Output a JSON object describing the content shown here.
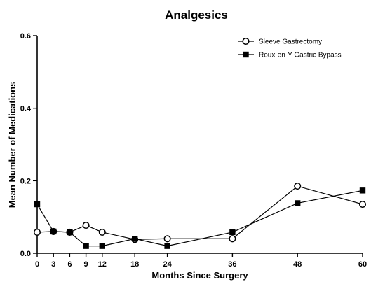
{
  "chart_data": {
    "type": "line",
    "title": "Analgesics",
    "xlabel": "Months Since Surgery",
    "ylabel": "Mean Number of Medications",
    "x": [
      0,
      3,
      6,
      9,
      12,
      18,
      24,
      36,
      48,
      60
    ],
    "x_tick_labels": [
      "0",
      "3",
      "6",
      "9",
      "12",
      "18",
      "24",
      "36",
      "48",
      "60"
    ],
    "y_tick_values": [
      0.0,
      0.2,
      0.4,
      0.6
    ],
    "y_tick_labels": [
      "0.0",
      "0.2",
      "0.4",
      "0.6"
    ],
    "xlim": [
      0,
      60
    ],
    "ylim": [
      0,
      0.6
    ],
    "grid": false,
    "legend_position": "top-right",
    "series": [
      {
        "name": "Sleeve Gastrectomy",
        "marker": "open-circle",
        "color": "#000000",
        "values": [
          0.058,
          0.06,
          0.058,
          0.077,
          0.058,
          0.038,
          0.04,
          0.04,
          0.185,
          0.135
        ]
      },
      {
        "name": "Roux-en-Y Gastric Bypass",
        "marker": "filled-square",
        "color": "#000000",
        "values": [
          0.135,
          0.06,
          0.058,
          0.02,
          0.02,
          0.04,
          0.02,
          0.058,
          0.138,
          0.173
        ]
      }
    ]
  }
}
